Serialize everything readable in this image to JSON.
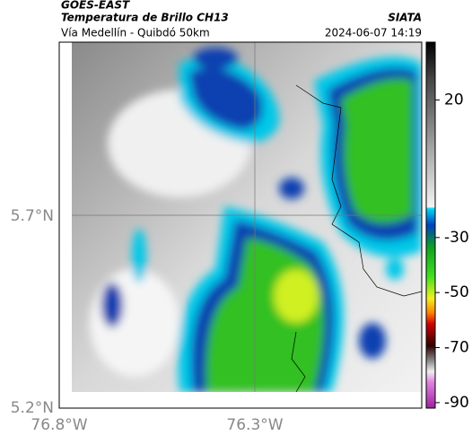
{
  "header": {
    "title": "GOES-EAST",
    "subtitle": "Temperatura de Brillo CH13",
    "source": "SIATA",
    "location": "Vía Medellín - Quibdó 50km",
    "datetime": "2024-06-07 14:19"
  },
  "map": {
    "lat_labels": [
      "5.7°N",
      "5.2°N"
    ],
    "lon_labels": [
      "76.8°W",
      "76.3°W"
    ]
  },
  "colorbar": {
    "range": [
      41,
      -92
    ],
    "ticks": [
      20,
      -30,
      -50,
      -70,
      -90
    ]
  }
}
